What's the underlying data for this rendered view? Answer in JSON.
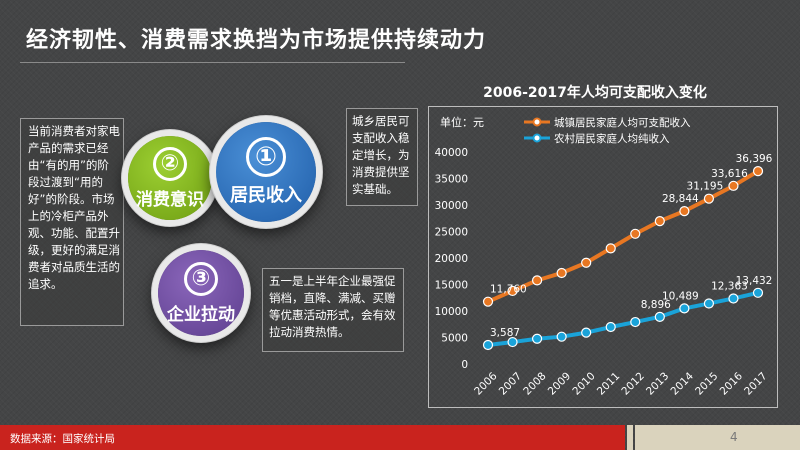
{
  "header": {
    "title": "经济韧性、消费需求换挡为市场提供持续动力"
  },
  "notes": {
    "left": "当前消费者对家电产品的需求已经由“有的用”的阶段过渡到“用的好”的阶段。市场上的冷柜产品外观、功能、配置升级，更好的满足消费者对品质生活的追求。",
    "middle": "城乡居民可支配收入稳定增长，为消费提供坚实基础。",
    "bottom": "五一是上半年企业最强促销档，直降、满减、买赠等优惠活动形式，会有效拉动消费热情。"
  },
  "circles": [
    {
      "num": "②",
      "label": "消费意识",
      "color": "#8dc026"
    },
    {
      "num": "①",
      "label": "居民收入",
      "color": "#2c72c2"
    },
    {
      "num": "③",
      "label": "企业拉动",
      "color": "#7652a6"
    }
  ],
  "chart_data": {
    "type": "line",
    "title": "2006-2017年人均可支配收入变化",
    "unit_label": "单位：元",
    "x": [
      "2006",
      "2007",
      "2008",
      "2009",
      "2010",
      "2011",
      "2012",
      "2013",
      "2014",
      "2015",
      "2016",
      "2017"
    ],
    "ylim": [
      0,
      40000
    ],
    "yticks": [
      0,
      5000,
      10000,
      15000,
      20000,
      25000,
      30000,
      35000,
      40000
    ],
    "legend_position": "top",
    "series": [
      {
        "name": "城镇居民家庭人均可支配收入",
        "color": "#e87722",
        "values": [
          11760,
          13786,
          15781,
          17175,
          19109,
          21810,
          24565,
          26955,
          28844,
          31195,
          33616,
          36396
        ],
        "labels": {
          "0": "11,760",
          "8": "28,844",
          "9": "31,195",
          "10": "33,616",
          "11": "36,396"
        }
      },
      {
        "name": "农村居民家庭人均纯收入",
        "color": "#1aa3d9",
        "values": [
          3587,
          4140,
          4761,
          5153,
          5919,
          6977,
          7917,
          8896,
          10489,
          11422,
          12363,
          13432
        ],
        "labels": {
          "0": "3,587",
          "7": "8,896",
          "8": "10,489",
          "10": "12,363",
          "11": "13,432"
        }
      }
    ]
  },
  "footer": {
    "source": "数据来源：国家统计局",
    "page": "4"
  }
}
